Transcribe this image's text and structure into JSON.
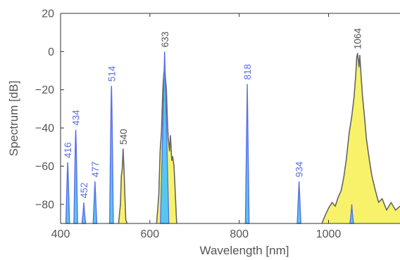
{
  "chart_data": {
    "type": "line",
    "xlabel": "Wavelength [nm]",
    "ylabel": "Spectrum [dB]",
    "xlim": [
      400,
      1160
    ],
    "ylim": [
      -90,
      20
    ],
    "xticks": [
      "400",
      "600",
      "800",
      "1000"
    ],
    "yticks": [
      "−80",
      "−60",
      "−40",
      "−20",
      "0",
      "20"
    ],
    "grid": false,
    "colors": {
      "blue_line": "#5b6ee8",
      "blue_fill": "#55c8f0",
      "gray_line": "#666666",
      "yellow_fill": "#f8f26a"
    },
    "blue_peaks": [
      {
        "label": "416",
        "x": 416,
        "y": -58
      },
      {
        "label": "434",
        "x": 434,
        "y": -41
      },
      {
        "label": "452",
        "x": 452,
        "y": -79
      },
      {
        "label": "477",
        "x": 477,
        "y": -68
      },
      {
        "label": "514",
        "x": 514,
        "y": -18
      },
      {
        "label": "633",
        "x": 633,
        "y": 0
      },
      {
        "label": "818",
        "x": 818,
        "y": -17
      },
      {
        "label": "934",
        "x": 934,
        "y": -68
      },
      {
        "label": "",
        "x": 1052,
        "y": -80
      }
    ],
    "gray_spectra": [
      {
        "label": "540",
        "points": [
          [
            530,
            -90
          ],
          [
            534,
            -80
          ],
          [
            536,
            -65
          ],
          [
            538,
            -62
          ],
          [
            540,
            -51
          ],
          [
            542,
            -62
          ],
          [
            544,
            -75
          ],
          [
            546,
            -88
          ],
          [
            549,
            -90
          ]
        ]
      },
      {
        "label": "",
        "points": [
          [
            615,
            -90
          ],
          [
            620,
            -75
          ],
          [
            623,
            -52
          ],
          [
            626,
            -42
          ],
          [
            629,
            -20
          ],
          [
            631,
            -12
          ],
          [
            633,
            -9
          ],
          [
            635,
            -14
          ],
          [
            637,
            -20
          ],
          [
            639,
            -35
          ],
          [
            641,
            -45
          ],
          [
            644,
            -52
          ],
          [
            646,
            -44
          ],
          [
            649,
            -57
          ],
          [
            651,
            -55
          ],
          [
            654,
            -60
          ],
          [
            656,
            -70
          ],
          [
            658,
            -80
          ],
          [
            660,
            -90
          ]
        ]
      },
      {
        "label": "1064",
        "points": [
          [
            985,
            -90
          ],
          [
            992,
            -86
          ],
          [
            1000,
            -82
          ],
          [
            1008,
            -79
          ],
          [
            1015,
            -81
          ],
          [
            1022,
            -76
          ],
          [
            1028,
            -73
          ],
          [
            1034,
            -66
          ],
          [
            1040,
            -56
          ],
          [
            1046,
            -43
          ],
          [
            1052,
            -34
          ],
          [
            1057,
            -24
          ],
          [
            1061,
            -12
          ],
          [
            1063,
            -3
          ],
          [
            1065,
            -1
          ],
          [
            1068,
            -8
          ],
          [
            1070,
            -2
          ],
          [
            1073,
            -13
          ],
          [
            1076,
            -23
          ],
          [
            1080,
            -33
          ],
          [
            1085,
            -46
          ],
          [
            1091,
            -56
          ],
          [
            1097,
            -65
          ],
          [
            1104,
            -72
          ],
          [
            1112,
            -79
          ],
          [
            1120,
            -77
          ],
          [
            1130,
            -83
          ],
          [
            1140,
            -79
          ],
          [
            1150,
            -83
          ],
          [
            1160,
            -81
          ]
        ]
      }
    ]
  }
}
